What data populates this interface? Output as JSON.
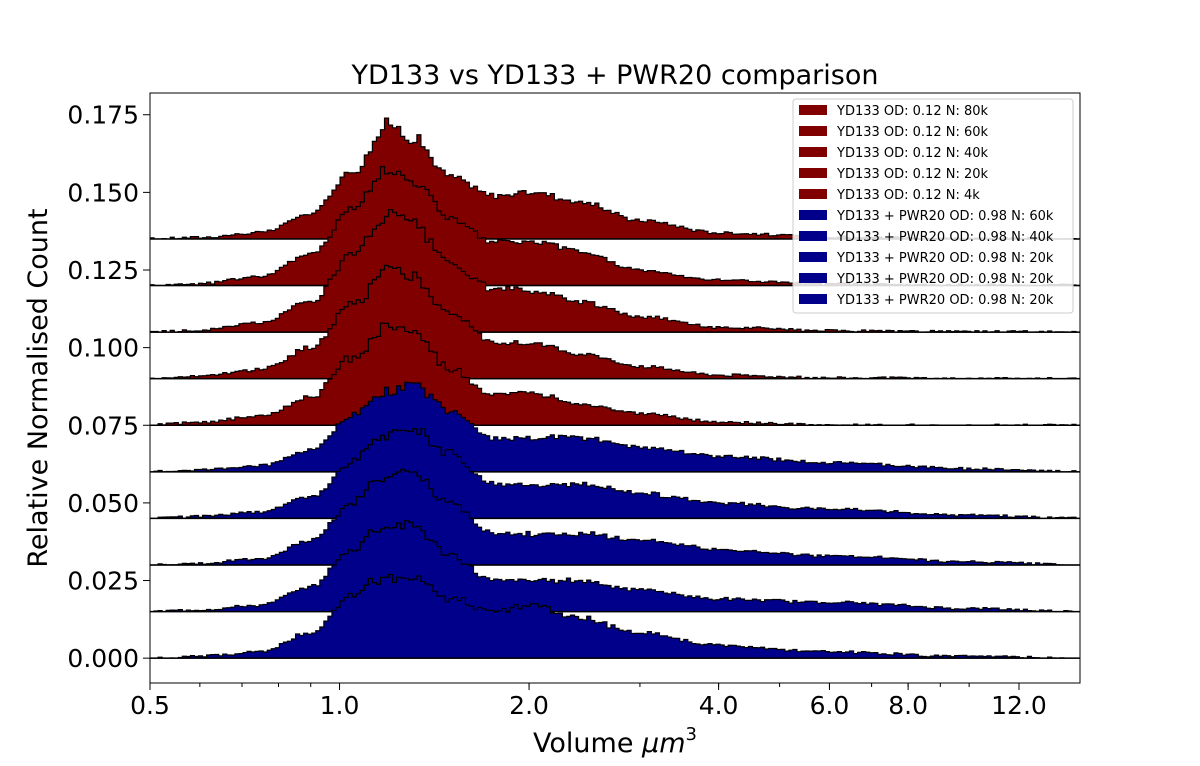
{
  "chart_data": {
    "type": "area",
    "title": "YD133  vs YD133 + PWR20 comparison",
    "xlabel_text": "Volume ",
    "xlabel_math": "μm",
    "xlabel_exp": "3",
    "ylabel": "Relative Normalised Count",
    "x_scale": "log",
    "xlim": [
      0.5,
      15.0
    ],
    "ylim": [
      -0.008,
      0.182
    ],
    "x_ticks": [
      0.5,
      1.0,
      2.0,
      4.0,
      6.0,
      8.0,
      12.0
    ],
    "x_tick_labels": [
      "0.5",
      "1.0",
      "2.0",
      "4.0",
      "6.0",
      "8.0",
      "12.0"
    ],
    "y_ticks": [
      0.0,
      0.025,
      0.05,
      0.075,
      0.1,
      0.125,
      0.15,
      0.175
    ],
    "y_tick_labels": [
      "0.000",
      "0.025",
      "0.050",
      "0.075",
      "0.100",
      "0.125",
      "0.150",
      "0.175"
    ],
    "legend_position": "top-right",
    "grid": false,
    "series": [
      {
        "name": "YD133 OD: 0.12 N: 80k",
        "color": "#800000",
        "offset": 0.135,
        "profile": {
          "x": [
            0.5,
            0.6,
            0.75,
            0.9,
            1.05,
            1.2,
            1.3,
            1.5,
            1.75,
            2.05,
            2.4,
            3.0,
            4.0,
            6.0,
            10.0,
            15.0
          ],
          "y": [
            0.0,
            0.0005,
            0.002,
            0.008,
            0.022,
            0.037,
            0.033,
            0.02,
            0.014,
            0.015,
            0.012,
            0.006,
            0.002,
            0.0006,
            0.0001,
            0.0
          ]
        }
      },
      {
        "name": "YD133 OD: 0.12 N: 60k",
        "color": "#800000",
        "offset": 0.12,
        "profile": {
          "x": [
            0.5,
            0.6,
            0.75,
            0.9,
            1.05,
            1.2,
            1.3,
            1.5,
            1.75,
            2.05,
            2.4,
            3.0,
            4.0,
            6.0,
            10.0,
            15.0
          ],
          "y": [
            0.0,
            0.0006,
            0.003,
            0.01,
            0.025,
            0.038,
            0.034,
            0.022,
            0.014,
            0.014,
            0.011,
            0.005,
            0.0018,
            0.0005,
            0.0001,
            0.0
          ]
        }
      },
      {
        "name": "YD133 OD: 0.12 N: 40k",
        "color": "#800000",
        "offset": 0.105,
        "profile": {
          "x": [
            0.5,
            0.6,
            0.75,
            0.9,
            1.05,
            1.2,
            1.3,
            1.5,
            1.75,
            2.05,
            2.4,
            3.0,
            4.0,
            6.0,
            10.0,
            15.0
          ],
          "y": [
            0.0,
            0.0006,
            0.003,
            0.01,
            0.025,
            0.038,
            0.035,
            0.022,
            0.014,
            0.013,
            0.01,
            0.005,
            0.0016,
            0.0004,
            0.0001,
            0.0
          ]
        }
      },
      {
        "name": "YD133 OD: 0.12 N: 20k",
        "color": "#800000",
        "offset": 0.09,
        "profile": {
          "x": [
            0.5,
            0.6,
            0.75,
            0.9,
            1.05,
            1.2,
            1.3,
            1.5,
            1.75,
            2.05,
            2.4,
            3.0,
            4.0,
            6.0,
            10.0,
            15.0
          ],
          "y": [
            0.0,
            0.0008,
            0.003,
            0.01,
            0.024,
            0.036,
            0.033,
            0.021,
            0.012,
            0.011,
            0.008,
            0.004,
            0.0012,
            0.0003,
            0.0,
            0.0
          ]
        }
      },
      {
        "name": "YD133 OD: 0.12 N: 4k",
        "color": "#800000",
        "offset": 0.075,
        "profile": {
          "x": [
            0.5,
            0.6,
            0.75,
            0.9,
            1.05,
            1.2,
            1.3,
            1.5,
            1.75,
            2.05,
            2.4,
            3.0,
            4.0,
            6.0,
            10.0,
            15.0
          ],
          "y": [
            0.0,
            0.001,
            0.003,
            0.009,
            0.022,
            0.032,
            0.03,
            0.018,
            0.01,
            0.01,
            0.007,
            0.004,
            0.001,
            0.0,
            0.0,
            0.0
          ]
        }
      },
      {
        "name": "YD133 + PWR20 OD: 0.98 N: 60k",
        "color": "#00008b",
        "offset": 0.06,
        "profile": {
          "x": [
            0.5,
            0.6,
            0.75,
            0.9,
            1.05,
            1.15,
            1.3,
            1.5,
            1.75,
            2.05,
            2.4,
            3.0,
            4.0,
            6.0,
            10.0,
            15.0
          ],
          "y": [
            0.0,
            0.0006,
            0.002,
            0.007,
            0.018,
            0.025,
            0.028,
            0.02,
            0.011,
            0.011,
            0.011,
            0.008,
            0.005,
            0.003,
            0.001,
            0.0
          ]
        }
      },
      {
        "name": "YD133 + PWR20 OD: 0.98 N: 40k",
        "color": "#00008b",
        "offset": 0.045,
        "profile": {
          "x": [
            0.5,
            0.6,
            0.75,
            0.9,
            1.05,
            1.15,
            1.3,
            1.5,
            1.75,
            2.05,
            2.4,
            3.0,
            4.0,
            6.0,
            10.0,
            15.0
          ],
          "y": [
            0.0,
            0.0006,
            0.002,
            0.007,
            0.018,
            0.026,
            0.029,
            0.021,
            0.011,
            0.011,
            0.011,
            0.008,
            0.005,
            0.003,
            0.001,
            0.0
          ]
        }
      },
      {
        "name": "YD133 + PWR20 OD: 0.98 N: 20k",
        "color": "#00008b",
        "offset": 0.03,
        "profile": {
          "x": [
            0.5,
            0.6,
            0.75,
            0.9,
            1.05,
            1.15,
            1.3,
            1.5,
            1.75,
            2.05,
            2.4,
            3.0,
            4.0,
            6.0,
            10.0,
            15.0
          ],
          "y": [
            0.0,
            0.0006,
            0.002,
            0.008,
            0.02,
            0.028,
            0.03,
            0.02,
            0.01,
            0.01,
            0.01,
            0.008,
            0.005,
            0.003,
            0.001,
            0.0
          ]
        }
      },
      {
        "name": "YD133 + PWR20 OD: 0.98 N: 20k",
        "color": "#00008b",
        "offset": 0.015,
        "profile": {
          "x": [
            0.5,
            0.6,
            0.75,
            0.9,
            1.05,
            1.15,
            1.3,
            1.5,
            1.75,
            2.05,
            2.4,
            3.0,
            4.0,
            6.0,
            10.0,
            15.0
          ],
          "y": [
            0.0,
            0.0006,
            0.002,
            0.008,
            0.02,
            0.027,
            0.028,
            0.018,
            0.01,
            0.01,
            0.01,
            0.007,
            0.004,
            0.003,
            0.001,
            0.0
          ]
        }
      },
      {
        "name": "YD133 + PWR20 OD: 0.98 N: 20k",
        "color": "#00008b",
        "offset": 0.0,
        "profile": {
          "x": [
            0.5,
            0.6,
            0.75,
            0.9,
            1.05,
            1.15,
            1.3,
            1.5,
            1.75,
            2.05,
            2.4,
            3.0,
            4.0,
            6.0,
            10.0,
            15.0
          ],
          "y": [
            0.0,
            0.0006,
            0.002,
            0.008,
            0.02,
            0.025,
            0.026,
            0.019,
            0.015,
            0.017,
            0.013,
            0.008,
            0.004,
            0.002,
            0.0005,
            0.0
          ]
        }
      }
    ]
  }
}
